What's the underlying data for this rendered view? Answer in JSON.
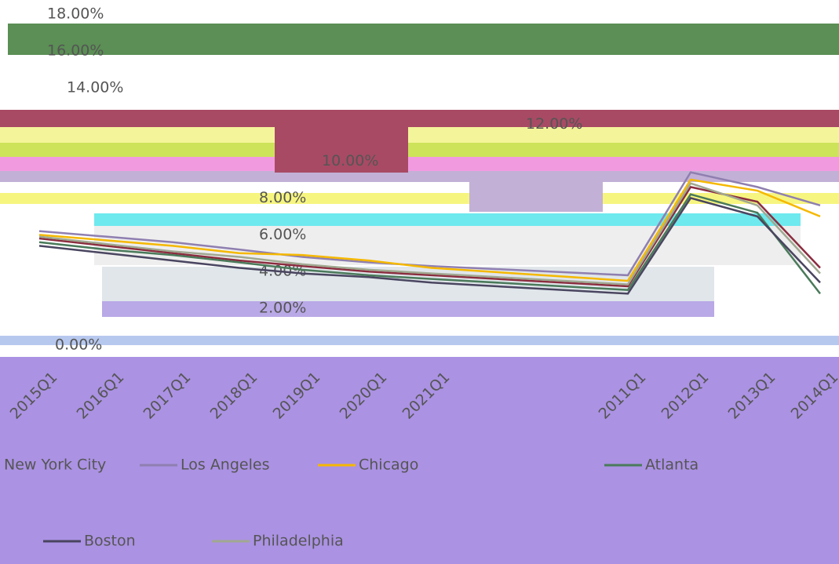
{
  "chart_data": {
    "type": "line",
    "categories": [
      "2015Q1",
      "2016Q1",
      "2017Q1",
      "2018Q1",
      "2019Q1",
      "2020Q1",
      "2021Q1",
      "2011Q1",
      "2012Q1",
      "2013Q1",
      "2014Q1"
    ],
    "series": [
      {
        "name": "New York City",
        "color": "#8b2c3f",
        "values": [
          5.8,
          5.4,
          5.0,
          4.6,
          4.3,
          4.0,
          3.8,
          3.2,
          8.6,
          7.8,
          4.2
        ]
      },
      {
        "name": "Los Angeles",
        "color": "#8f7fb0",
        "values": [
          6.2,
          5.9,
          5.6,
          5.2,
          4.8,
          4.5,
          4.3,
          3.8,
          9.4,
          8.6,
          7.6
        ]
      },
      {
        "name": "Chicago",
        "color": "#f5b800",
        "values": [
          6.0,
          5.7,
          5.4,
          5.0,
          4.9,
          4.6,
          4.2,
          3.5,
          9.0,
          8.4,
          7.0
        ]
      },
      {
        "name": "Atlanta",
        "color": "#4a7a5a",
        "values": [
          5.6,
          5.2,
          4.9,
          4.5,
          4.1,
          3.8,
          3.6,
          3.0,
          8.2,
          7.2,
          2.8
        ]
      },
      {
        "name": "Boston",
        "color": "#4a4560",
        "values": [
          5.4,
          5.0,
          4.6,
          4.2,
          3.9,
          3.7,
          3.4,
          2.8,
          8.0,
          7.0,
          3.4
        ]
      },
      {
        "name": "Philadelphia",
        "color": "#a0a890",
        "values": [
          5.9,
          5.5,
          5.1,
          4.8,
          4.4,
          4.1,
          3.9,
          3.3,
          8.8,
          7.6,
          3.9
        ]
      }
    ],
    "ylim": [
      0,
      18
    ],
    "yticks": [
      {
        "value": 0,
        "label": "0.00%"
      },
      {
        "value": 2,
        "label": "2.00%"
      },
      {
        "value": 4,
        "label": "4.00%"
      },
      {
        "value": 6,
        "label": "6.00%"
      },
      {
        "value": 8,
        "label": "8.00%"
      },
      {
        "value": 10,
        "label": "10.00%"
      },
      {
        "value": 12,
        "label": "12.00%"
      },
      {
        "value": 14,
        "label": "14.00%"
      },
      {
        "value": 16,
        "label": "16.00%"
      },
      {
        "value": 18,
        "label": "18.00%"
      }
    ],
    "grid": false,
    "legend": "bottom"
  }
}
